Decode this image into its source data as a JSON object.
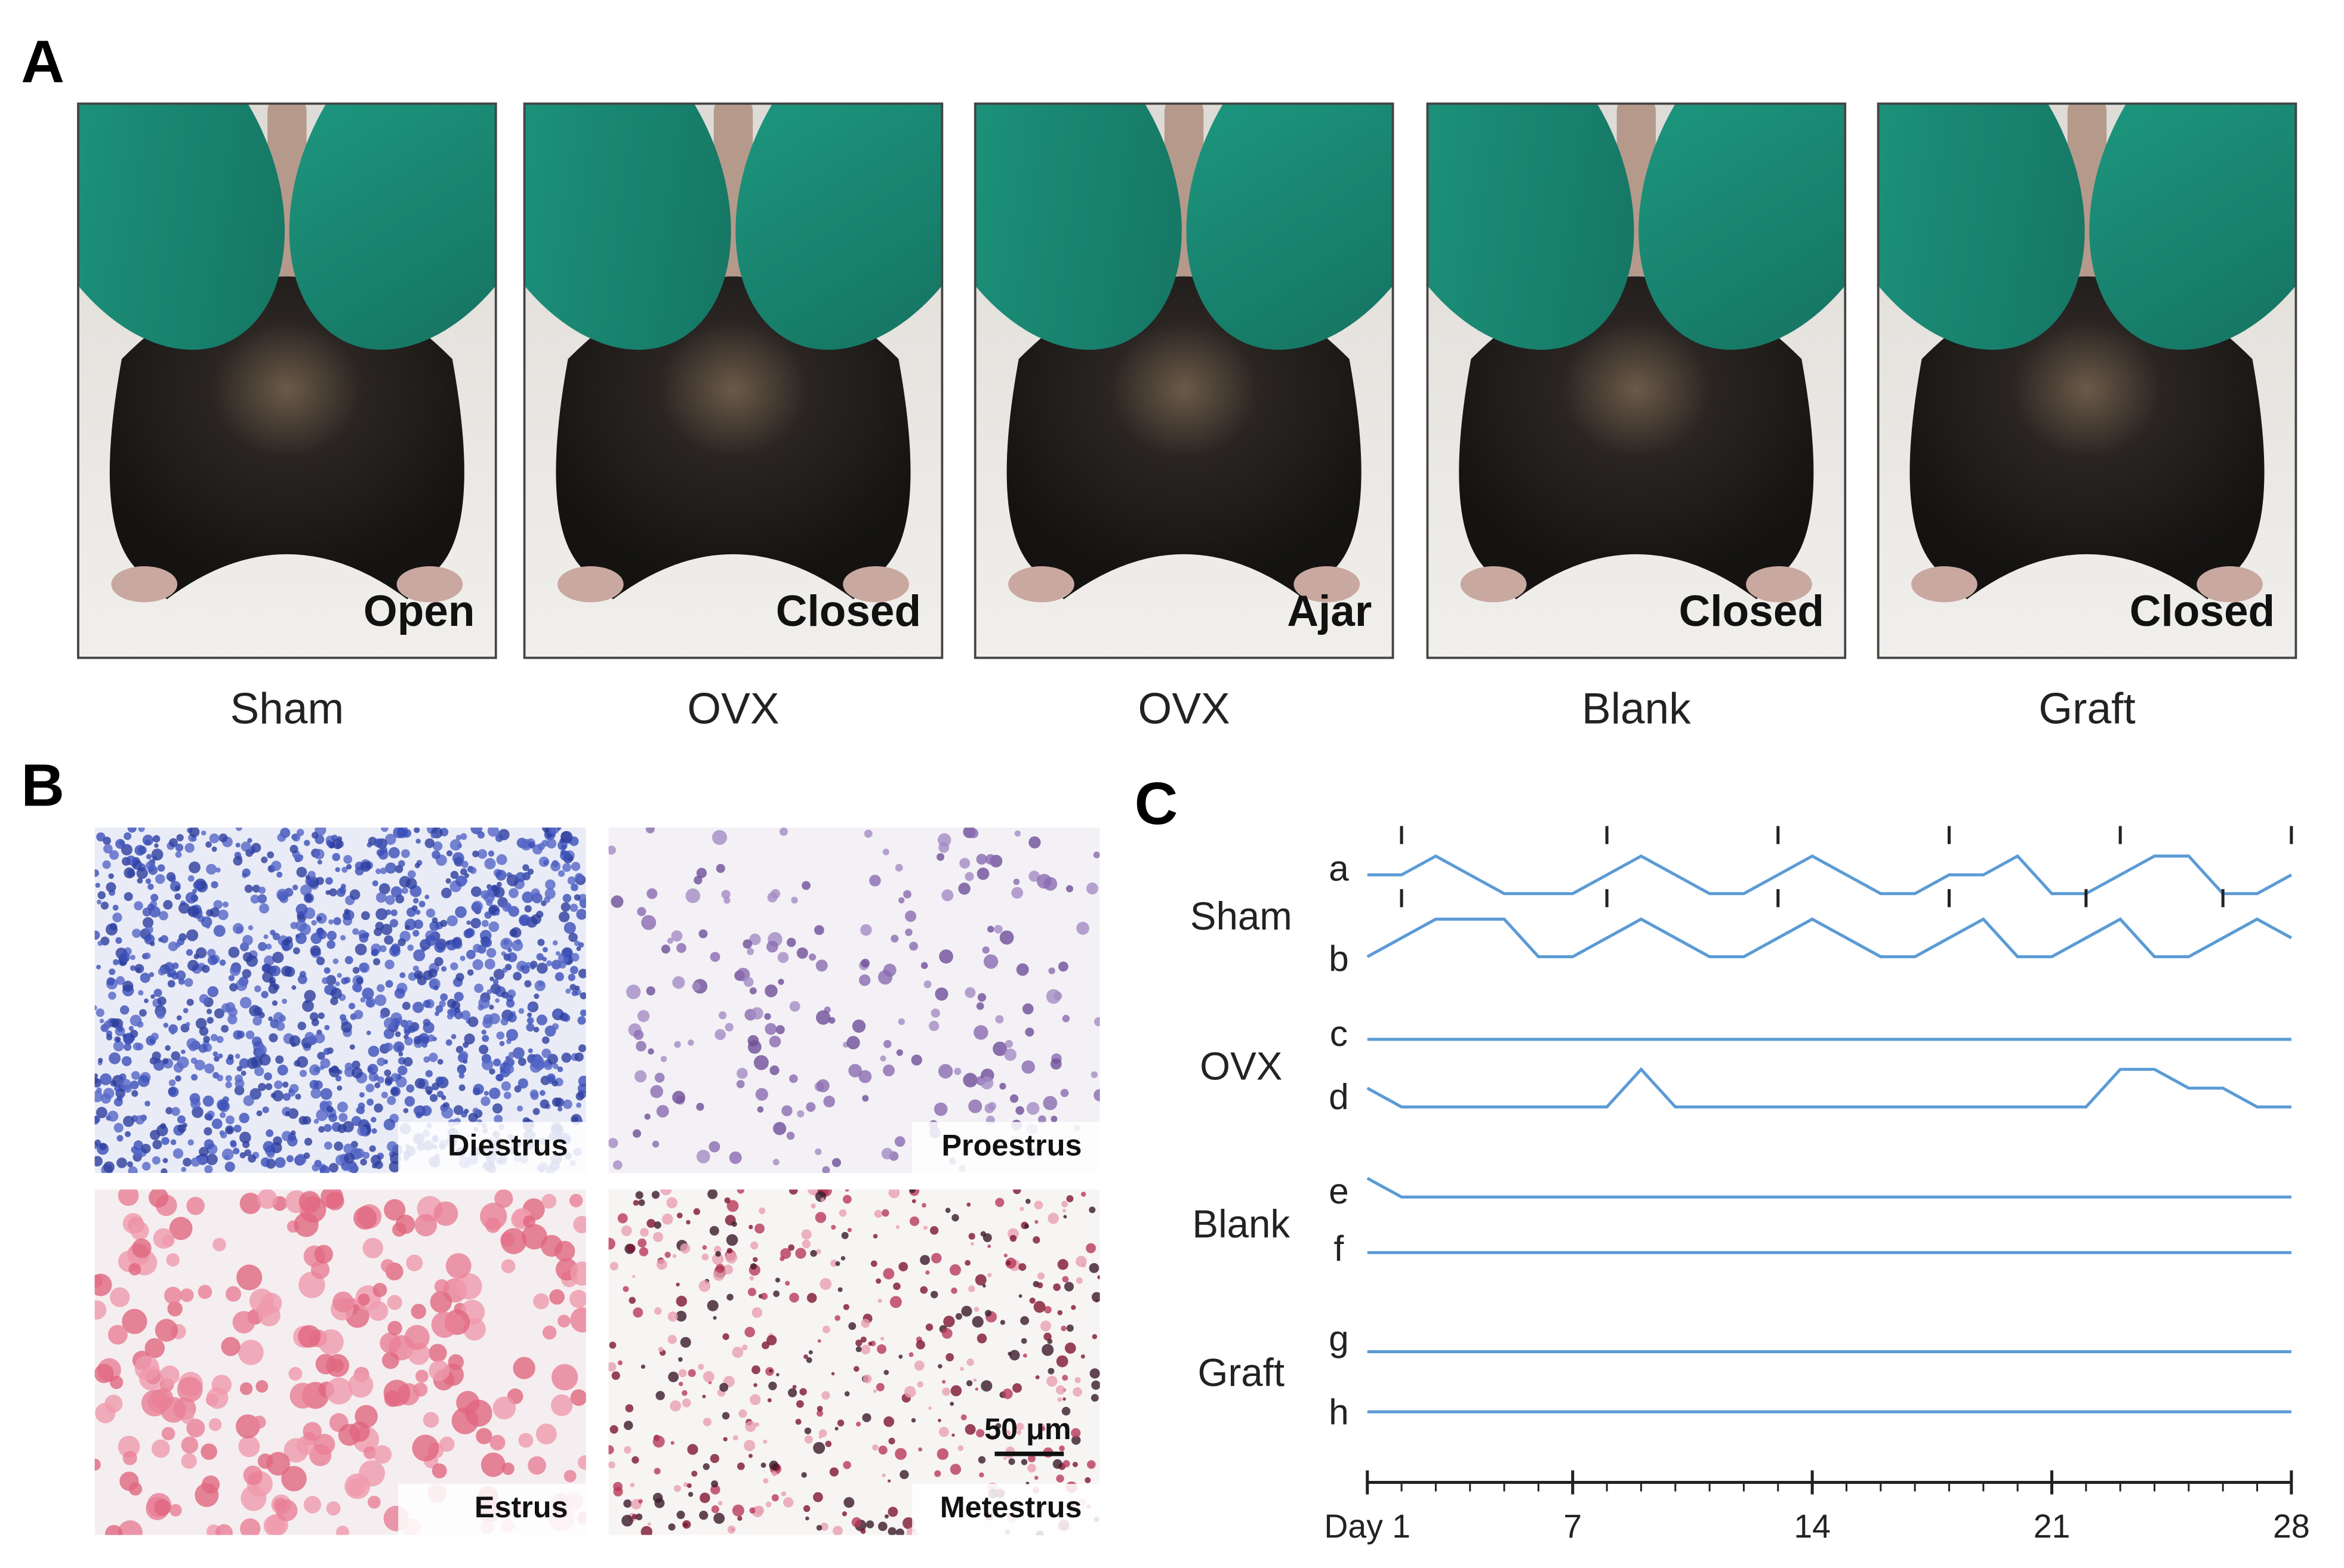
{
  "panel_a": {
    "label": "A",
    "photos": [
      {
        "state": "Open",
        "group": "Sham"
      },
      {
        "state": "Closed",
        "group": "OVX"
      },
      {
        "state": "Ajar",
        "group": "OVX"
      },
      {
        "state": "Closed",
        "group": "Blank"
      },
      {
        "state": "Closed",
        "group": "Graft"
      }
    ]
  },
  "panel_b": {
    "label": "B",
    "images": [
      {
        "stage": "Diestrus"
      },
      {
        "stage": "Proestrus"
      },
      {
        "stage": "Estrus"
      },
      {
        "stage": "Metestrus"
      }
    ],
    "scale_bar": "50 μm"
  },
  "chart_data": {
    "type": "line",
    "panel_label": "C",
    "color": "#5b9bd5",
    "xlim": [
      1,
      28
    ],
    "xticks": [
      {
        "value": 1,
        "label": "Day 1"
      },
      7,
      14,
      21,
      28
    ],
    "groups": [
      {
        "name": "Sham",
        "series": [
          {
            "name": "a",
            "tick_days": [
              2,
              8,
              13,
              18,
              23,
              28
            ],
            "values": [
              1,
              1,
              2,
              1,
              0,
              0,
              0,
              1,
              2,
              1,
              0,
              0,
              1,
              2,
              1,
              0,
              0,
              1,
              1,
              2,
              0,
              0,
              1,
              2,
              2,
              0,
              0,
              1
            ]
          },
          {
            "name": "b",
            "tick_days": [
              2,
              8,
              13,
              18,
              22,
              26
            ],
            "values": [
              0,
              1,
              2,
              2,
              2,
              0,
              0,
              1,
              2,
              1,
              0,
              0,
              1,
              2,
              1,
              0,
              0,
              1,
              2,
              0,
              0,
              1,
              2,
              0,
              0,
              1,
              2,
              1
            ]
          }
        ]
      },
      {
        "name": "OVX",
        "series": [
          {
            "name": "c",
            "values": [
              0,
              0,
              0,
              0,
              0,
              0,
              0,
              0,
              0,
              0,
              0,
              0,
              0,
              0,
              0,
              0,
              0,
              0,
              0,
              0,
              0,
              0,
              0,
              0,
              0,
              0,
              0,
              0
            ]
          },
          {
            "name": "d",
            "values": [
              1,
              0,
              0,
              0,
              0,
              0,
              0,
              0,
              2,
              0,
              0,
              0,
              0,
              0,
              0,
              0,
              0,
              0,
              0,
              0,
              0,
              0,
              2,
              2,
              1,
              1,
              0,
              0
            ]
          }
        ]
      },
      {
        "name": "Blank",
        "series": [
          {
            "name": "e",
            "values": [
              1,
              0,
              0,
              0,
              0,
              0,
              0,
              0,
              0,
              0,
              0,
              0,
              0,
              0,
              0,
              0,
              0,
              0,
              0,
              0,
              0,
              0,
              0,
              0,
              0,
              0,
              0,
              0
            ]
          },
          {
            "name": "f",
            "values": [
              0,
              0,
              0,
              0,
              0,
              0,
              0,
              0,
              0,
              0,
              0,
              0,
              0,
              0,
              0,
              0,
              0,
              0,
              0,
              0,
              0,
              0,
              0,
              0,
              0,
              0,
              0,
              0
            ]
          }
        ]
      },
      {
        "name": "Graft",
        "series": [
          {
            "name": "g",
            "values": [
              0,
              0,
              0,
              0,
              0,
              0,
              0,
              0,
              0,
              0,
              0,
              0,
              0,
              0,
              0,
              0,
              0,
              0,
              0,
              0,
              0,
              0,
              0,
              0,
              0,
              0,
              0,
              0
            ]
          },
          {
            "name": "h",
            "values": [
              0,
              0,
              0,
              0,
              0,
              0,
              0,
              0,
              0,
              0,
              0,
              0,
              0,
              0,
              0,
              0,
              0,
              0,
              0,
              0,
              0,
              0,
              0,
              0,
              0,
              0,
              0,
              0
            ]
          }
        ]
      }
    ]
  }
}
